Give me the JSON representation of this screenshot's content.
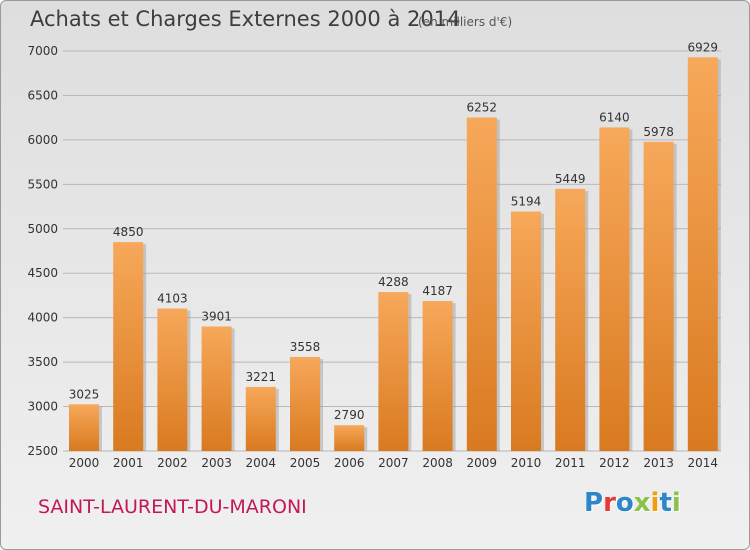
{
  "header": {
    "title": "Achats et Charges Externes 2000 à 2014",
    "subtitle": "(en milliers d'€)"
  },
  "footer": {
    "commune": "SAINT-LAURENT-DU-MARONI",
    "logo_letters": [
      "P",
      "r",
      "o",
      "x",
      "i",
      "t",
      "i"
    ],
    "logo_colors": [
      "#2e86c8",
      "#e53935",
      "#2e86c8",
      "#8bc34a",
      "#f39c12",
      "#2e86c8",
      "#8bc34a"
    ]
  },
  "colors": {
    "bar_top": "#f7a85a",
    "bar_bottom": "#d97a20",
    "grid": "#b8b8b8",
    "axis_text": "#333333"
  },
  "chart_data": {
    "type": "bar",
    "categories": [
      "2000",
      "2001",
      "2002",
      "2003",
      "2004",
      "2005",
      "2006",
      "2007",
      "2008",
      "2009",
      "2010",
      "2011",
      "2012",
      "2013",
      "2014"
    ],
    "values": [
      3025,
      4850,
      4103,
      3901,
      3221,
      3558,
      2790,
      4288,
      4187,
      6252,
      5194,
      5449,
      6140,
      5978,
      6929
    ],
    "title": "Achats et Charges Externes 2000 à 2014",
    "subtitle": "(en milliers d'€)",
    "ylim": [
      2500,
      7000
    ],
    "yticks": [
      2500,
      3000,
      3500,
      4000,
      4500,
      5000,
      5500,
      6000,
      6500,
      7000
    ],
    "grid": true,
    "data_labels": true
  }
}
